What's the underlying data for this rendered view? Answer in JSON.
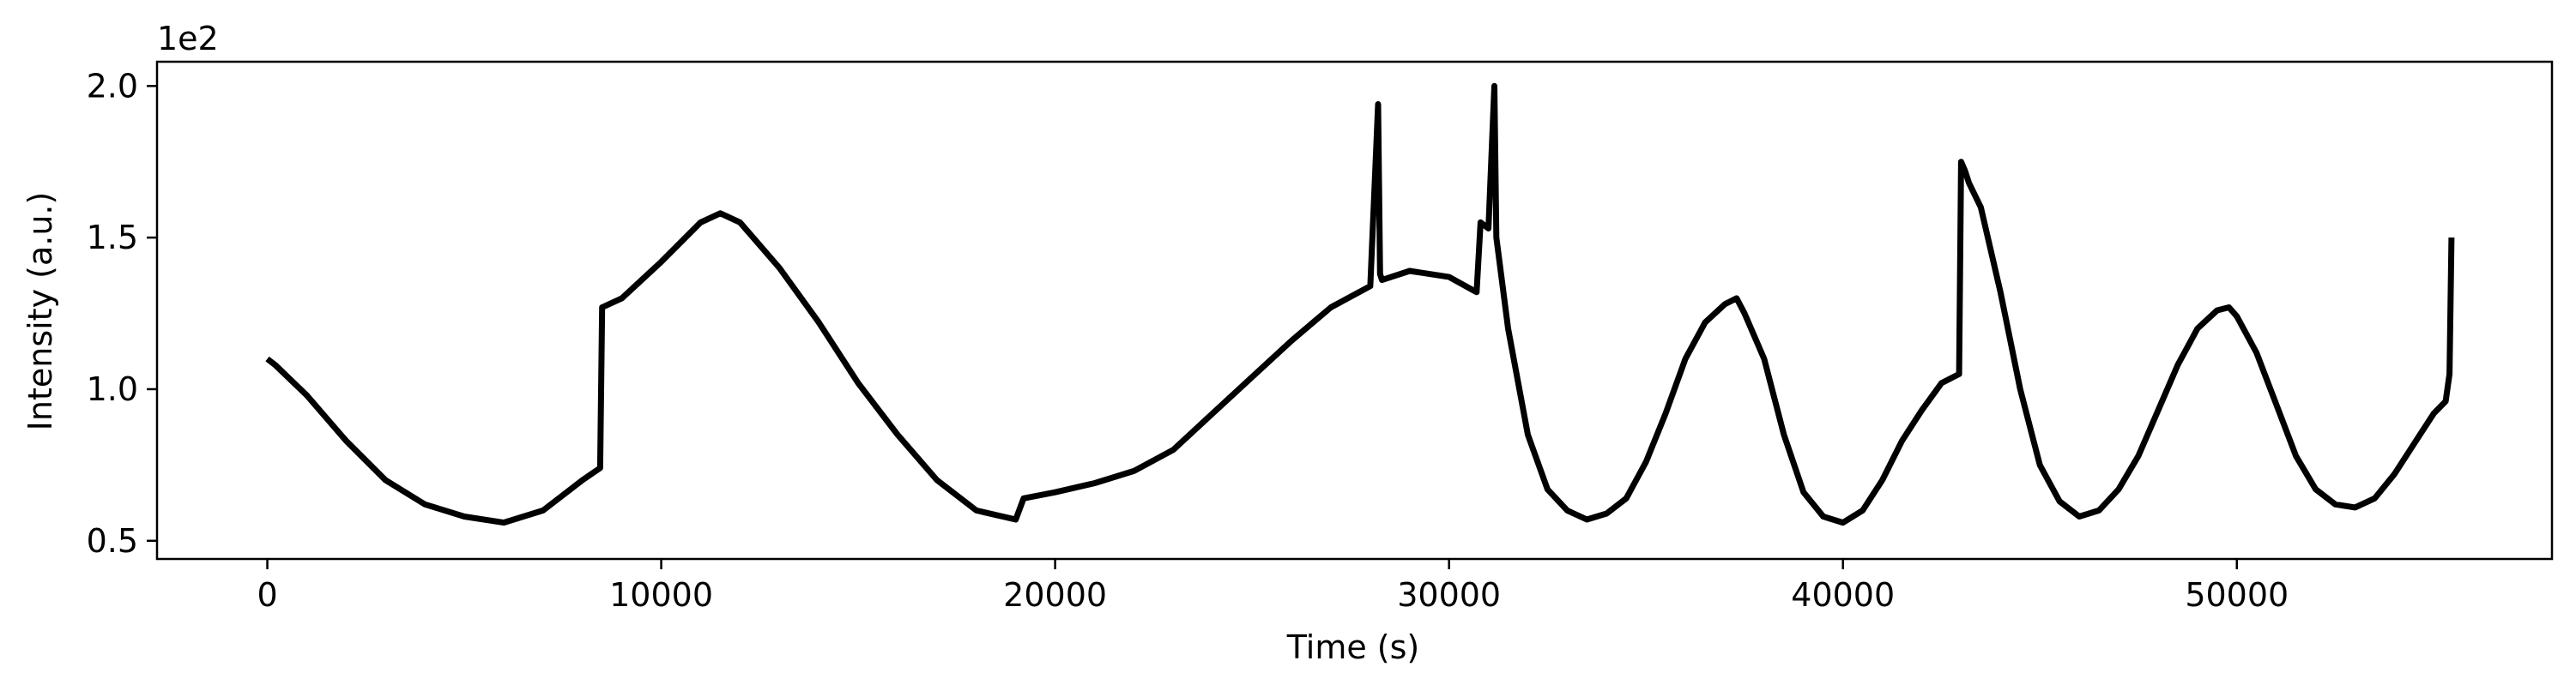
{
  "chart_data": {
    "type": "line",
    "title": "",
    "xlabel": "Time (s)",
    "ylabel": "Intensity (a.u.)",
    "y_offset_text": "1e2",
    "xlim": [
      -2800,
      58000
    ],
    "ylim": [
      0.44,
      2.08
    ],
    "x_ticks": [
      0,
      10000,
      20000,
      30000,
      40000,
      50000
    ],
    "x_tick_labels": [
      "0",
      "10000",
      "20000",
      "30000",
      "40000",
      "50000"
    ],
    "y_ticks": [
      0.5,
      1.0,
      1.5,
      2.0
    ],
    "y_tick_labels": [
      "0.5",
      "1.0",
      "1.5",
      "2.0"
    ],
    "grid": false,
    "line_color": "#000000",
    "series": [
      {
        "x": [
          0,
          200,
          1000,
          2000,
          3000,
          4000,
          5000,
          6000,
          7000,
          8000,
          8450,
          8500,
          9000,
          10000,
          11000,
          11500,
          12000,
          13000,
          14000,
          15000,
          16000,
          17000,
          18000,
          19000,
          19200,
          20000,
          21000,
          22000,
          23000,
          24000,
          25000,
          26000,
          27000,
          28000,
          28200,
          28250,
          28300,
          29000,
          30000,
          30700,
          30800,
          31000,
          31150,
          31200,
          31250,
          31500,
          32000,
          32500,
          33000,
          33500,
          34000,
          34500,
          35000,
          35500,
          36000,
          36500,
          37000,
          37300,
          37500,
          38000,
          38500,
          39000,
          39500,
          40000,
          40500,
          41000,
          41500,
          42000,
          42500,
          42950,
          43000,
          43100,
          43200,
          43500,
          44000,
          44500,
          45000,
          45500,
          46000,
          46500,
          47000,
          47500,
          48000,
          48500,
          49000,
          49500,
          49800,
          50000,
          50500,
          51000,
          51500,
          52000,
          52500,
          53000,
          53500,
          54000,
          54500,
          55000,
          55300,
          55400,
          55450
        ],
        "y": [
          1.1,
          1.08,
          0.98,
          0.83,
          0.7,
          0.62,
          0.58,
          0.56,
          0.6,
          0.7,
          0.74,
          1.27,
          1.3,
          1.42,
          1.55,
          1.58,
          1.55,
          1.4,
          1.22,
          1.02,
          0.85,
          0.7,
          0.6,
          0.57,
          0.64,
          0.66,
          0.69,
          0.73,
          0.8,
          0.92,
          1.04,
          1.16,
          1.27,
          1.34,
          1.94,
          1.38,
          1.36,
          1.39,
          1.37,
          1.32,
          1.55,
          1.53,
          2.0,
          1.5,
          1.45,
          1.2,
          0.85,
          0.67,
          0.6,
          0.57,
          0.59,
          0.64,
          0.76,
          0.92,
          1.1,
          1.22,
          1.28,
          1.3,
          1.25,
          1.1,
          0.85,
          0.66,
          0.58,
          0.56,
          0.6,
          0.7,
          0.83,
          0.93,
          1.02,
          1.05,
          1.75,
          1.72,
          1.68,
          1.6,
          1.32,
          1.0,
          0.75,
          0.63,
          0.58,
          0.6,
          0.67,
          0.78,
          0.93,
          1.08,
          1.2,
          1.26,
          1.27,
          1.24,
          1.12,
          0.95,
          0.78,
          0.67,
          0.62,
          0.61,
          0.64,
          0.72,
          0.82,
          0.92,
          0.96,
          1.05,
          1.5
        ]
      }
    ]
  }
}
